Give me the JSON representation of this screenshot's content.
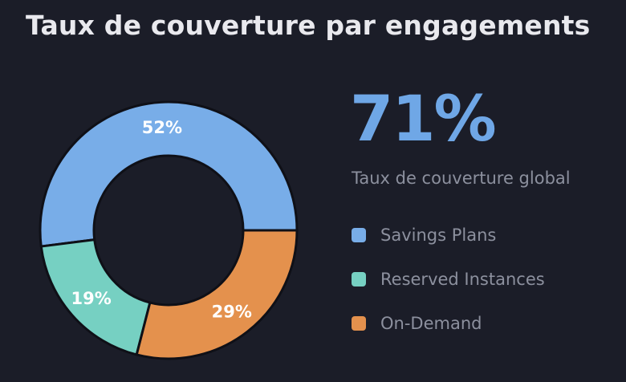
{
  "title": "Taux de couverture par engagements",
  "summary": {
    "value": "71%",
    "label": "Taux de couverture global"
  },
  "colors": {
    "background": "#1b1d28",
    "accent": "#6fa7e6",
    "savings_plans": "#78ade8",
    "reserved_instances": "#76d0c2",
    "on_demand": "#e4914d"
  },
  "chart_data": {
    "type": "pie",
    "variant": "donut",
    "title": "Taux de couverture par engagements",
    "categories": [
      "Savings Plans",
      "Reserved Instances",
      "On-Demand"
    ],
    "values": [
      52,
      19,
      29
    ],
    "labels": [
      "52%",
      "19%",
      "29%"
    ],
    "colors": [
      "#78ade8",
      "#76d0c2",
      "#e4914d"
    ],
    "legend_position": "right"
  },
  "legend": [
    {
      "label": "Savings Plans",
      "color": "#78ade8"
    },
    {
      "label": "Reserved Instances",
      "color": "#76d0c2"
    },
    {
      "label": "On-Demand",
      "color": "#e4914d"
    }
  ]
}
